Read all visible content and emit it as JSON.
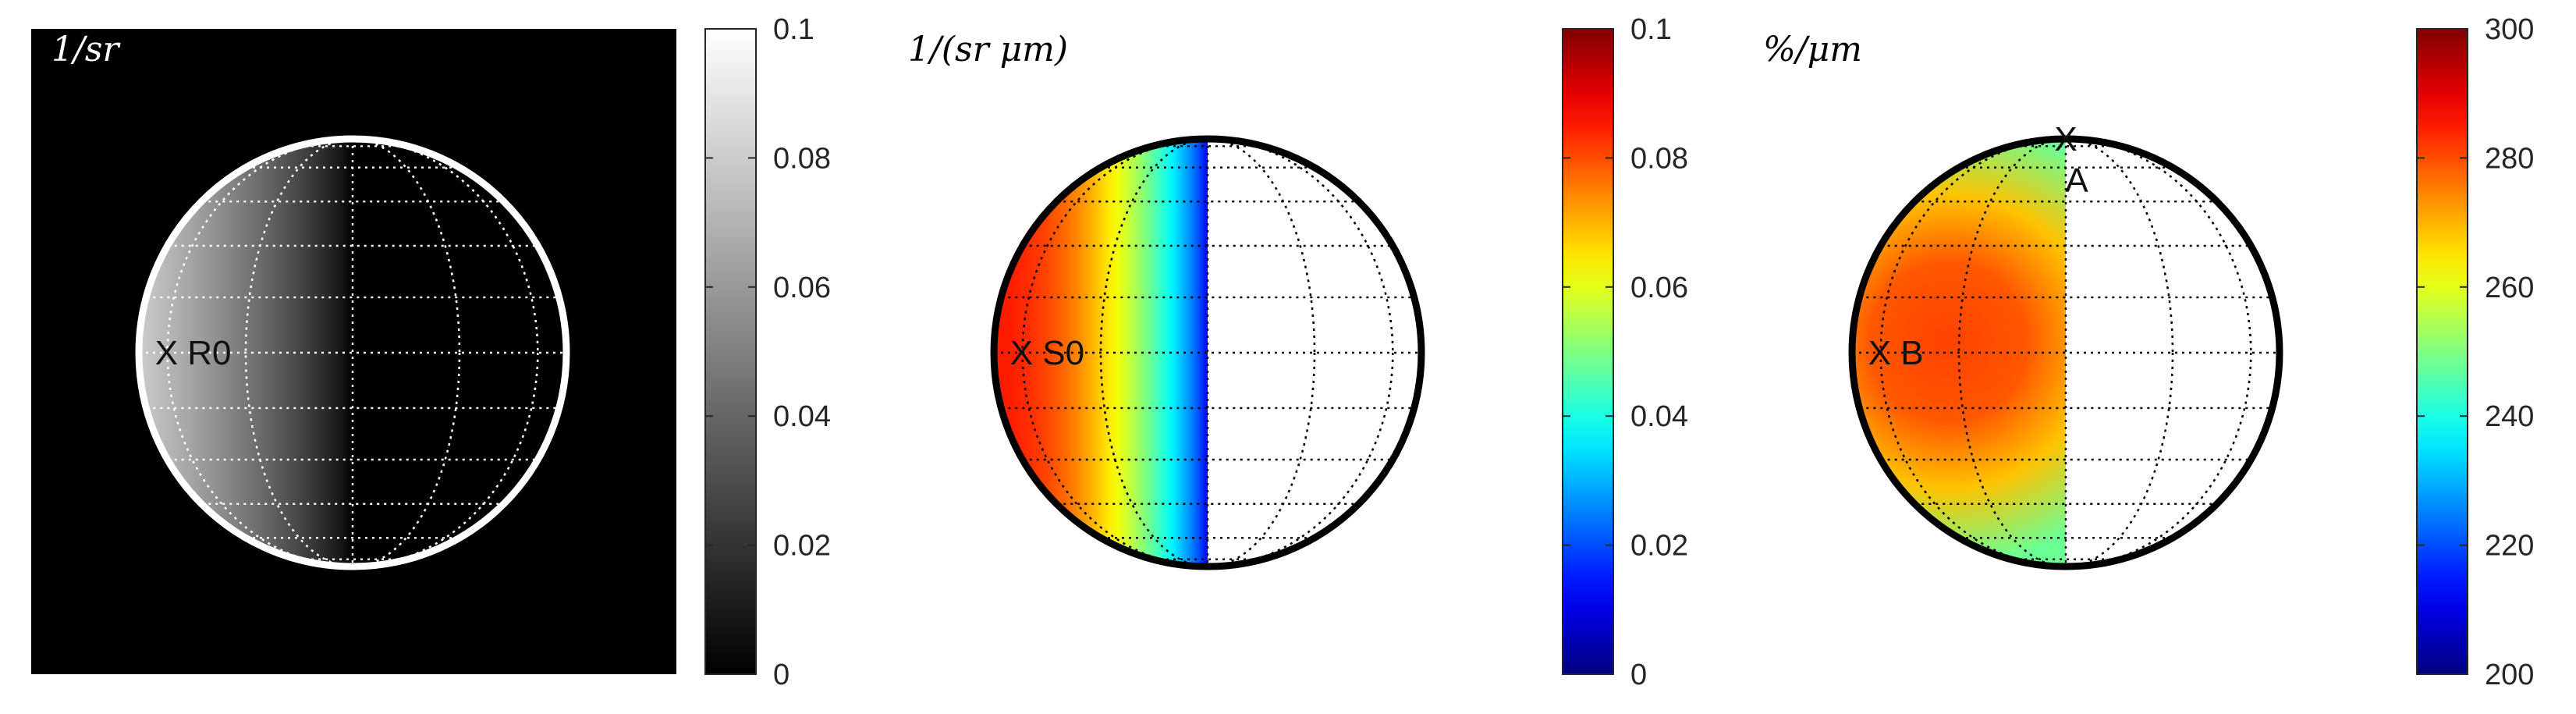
{
  "chart_data": [
    {
      "type": "heatmap",
      "title": "",
      "unit_label": "1/sr",
      "background": "#000000",
      "outline_color": "#ffffff",
      "grid_color": "#ffffff",
      "colormap": "gray",
      "clim": [
        0,
        0.1
      ],
      "colorbar_ticks": [
        "0",
        "0.02",
        "0.04",
        "0.06",
        "0.08",
        "0.1"
      ],
      "colorbar_tick_values": [
        0,
        0.02,
        0.04,
        0.06,
        0.08,
        0.1
      ],
      "illuminated_side": "left",
      "value_at_limb": 0.08,
      "value_at_terminator": 0.0,
      "markers": [
        {
          "label": "R0",
          "text": "X R0",
          "lon": -60,
          "lat": 0
        }
      ]
    },
    {
      "type": "heatmap",
      "title": "",
      "unit_label": "1/(sr μm)",
      "background": "#ffffff",
      "outline_color": "#000000",
      "grid_color": "#000000",
      "colormap": "jet",
      "clim": [
        0,
        0.1
      ],
      "colorbar_ticks": [
        "0",
        "0.02",
        "0.04",
        "0.06",
        "0.08",
        "0.1"
      ],
      "colorbar_tick_values": [
        0,
        0.02,
        0.04,
        0.06,
        0.08,
        0.1
      ],
      "illuminated_side": "left",
      "value_at_limb": 0.085,
      "value_at_terminator": 0.012,
      "markers": [
        {
          "label": "S0",
          "text": "X S0",
          "lon": -60,
          "lat": 0
        }
      ]
    },
    {
      "type": "heatmap",
      "title": "",
      "unit_label": "%/μm",
      "background": "#ffffff",
      "outline_color": "#000000",
      "grid_color": "#000000",
      "colormap": "jet",
      "clim": [
        200,
        300
      ],
      "colorbar_ticks": [
        "200",
        "220",
        "240",
        "260",
        "280",
        "300"
      ],
      "colorbar_tick_values": [
        200,
        220,
        240,
        260,
        280,
        300
      ],
      "illuminated_side": "left",
      "value_at_center": 281,
      "value_at_edge": 248,
      "markers": [
        {
          "label": "B",
          "text": "X B",
          "lon": -60,
          "lat": 0
        },
        {
          "label": "A",
          "text": "A",
          "mark": "X",
          "lon": 0,
          "lat": 90
        }
      ]
    }
  ]
}
